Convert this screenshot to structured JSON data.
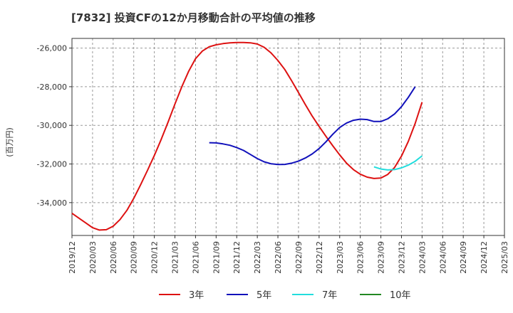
{
  "chart_data": {
    "type": "line",
    "title": "[7832]  投資CFの12か月移動合計の平均値の推移",
    "ylabel": "(百万円)",
    "xlabel": "",
    "ylim": [
      -35700,
      -25500
    ],
    "yticks": [
      -26000,
      -28000,
      -30000,
      -32000,
      -34000
    ],
    "ytick_labels": [
      "-26,000",
      "-28,000",
      "-30,000",
      "-32,000",
      "-34,000"
    ],
    "xticks": [
      "2019/12",
      "2020/03",
      "2020/06",
      "2020/09",
      "2020/12",
      "2021/03",
      "2021/06",
      "2021/09",
      "2021/12",
      "2022/03",
      "2022/06",
      "2022/09",
      "2022/12",
      "2023/03",
      "2023/06",
      "2023/09",
      "2023/12",
      "2024/03",
      "2024/06",
      "2024/09",
      "2024/12",
      "2025/03"
    ],
    "grid": true,
    "legend_position": "bottom",
    "series": [
      {
        "name": "3年",
        "color": "#dd1111",
        "start": "2019/12",
        "values": [
          -34550,
          -34800,
          -35050,
          -35300,
          -35420,
          -35400,
          -35220,
          -34880,
          -34400,
          -33780,
          -33080,
          -32330,
          -31560,
          -30720,
          -29830,
          -28900,
          -28000,
          -27200,
          -26550,
          -26150,
          -25930,
          -25830,
          -25770,
          -25730,
          -25710,
          -25710,
          -25730,
          -25790,
          -25960,
          -26250,
          -26640,
          -27110,
          -27690,
          -28310,
          -28930,
          -29520,
          -30060,
          -30570,
          -31060,
          -31530,
          -31960,
          -32290,
          -32530,
          -32680,
          -32750,
          -32730,
          -32540,
          -32180,
          -31590,
          -30830,
          -29900,
          -28800
        ]
      },
      {
        "name": "5年",
        "color": "#1111bb",
        "start": "2021/08",
        "values": [
          -30900,
          -30910,
          -30960,
          -31030,
          -31150,
          -31300,
          -31510,
          -31720,
          -31890,
          -31990,
          -32030,
          -32020,
          -31960,
          -31850,
          -31690,
          -31480,
          -31200,
          -30850,
          -30460,
          -30110,
          -29880,
          -29740,
          -29680,
          -29700,
          -29800,
          -29800,
          -29660,
          -29410,
          -29030,
          -28550,
          -28000
        ]
      },
      {
        "name": "7年",
        "color": "#22dddd",
        "start": "2023/08",
        "values": [
          -32150,
          -32260,
          -32310,
          -32290,
          -32200,
          -32060,
          -31860,
          -31580
        ]
      },
      {
        "name": "10年",
        "color": "#228822",
        "start": "2024/03",
        "values": []
      }
    ]
  }
}
